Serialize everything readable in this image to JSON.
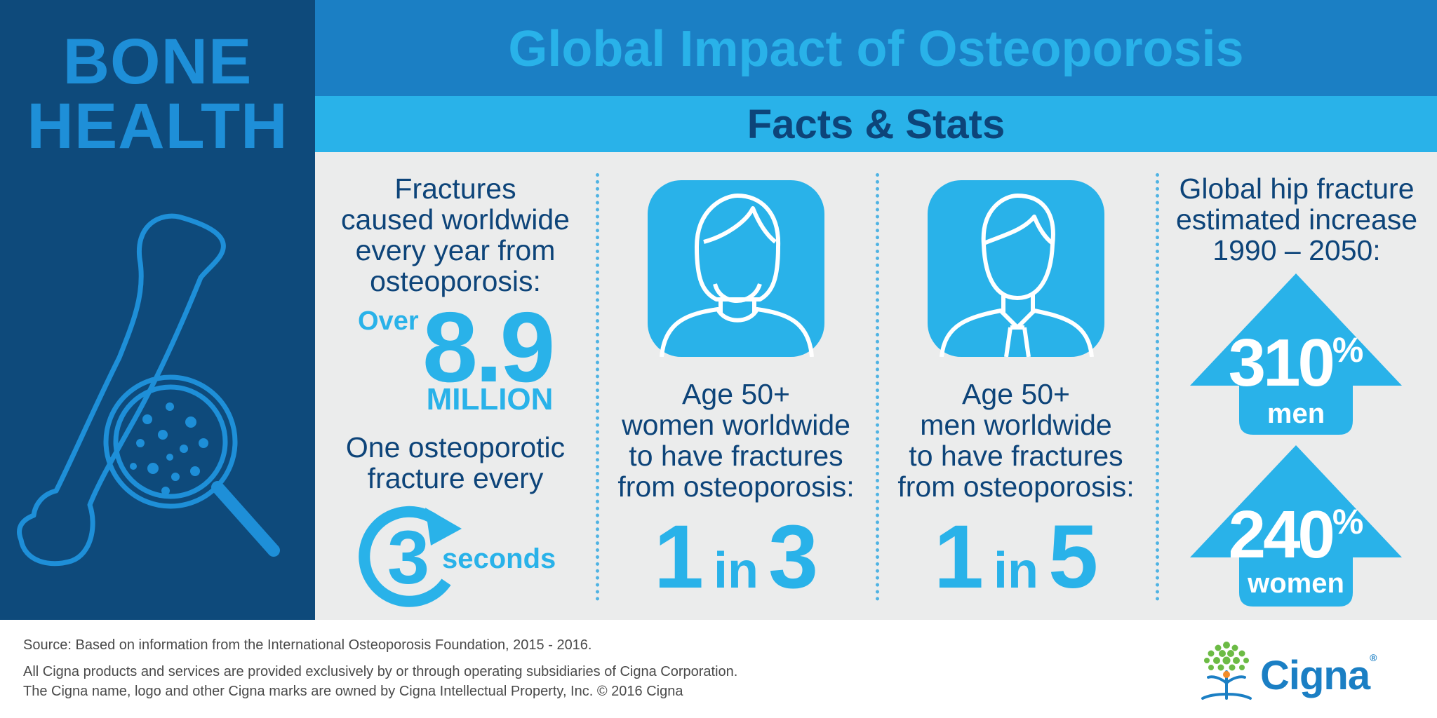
{
  "sidebar": {
    "title_line1": "BONE",
    "title_line2": "HEALTH",
    "icon": "bone-magnifier-icon"
  },
  "header": {
    "title": "Global Impact of Osteoporosis",
    "subtitle": "Facts & Stats"
  },
  "colors": {
    "navy": "#0e4a7b",
    "header_blue": "#1b7fc4",
    "light_blue": "#29b2e9",
    "panel_gray": "#ebecec",
    "dark_text": "#0d4479"
  },
  "stat_fractures": {
    "lines": [
      "Fractures",
      "caused worldwide",
      "every year from",
      "osteoporosis:"
    ],
    "prefix": "Over",
    "number": "8.9",
    "unit": "MILLION"
  },
  "stat_frequency": {
    "lines": [
      "One osteoporotic",
      "fracture every"
    ],
    "number": "3",
    "unit": "seconds",
    "icon": "circular-arrow-icon"
  },
  "stat_women": {
    "icon": "woman-avatar-icon",
    "lines": [
      "Age 50+",
      "women worldwide",
      "to have fractures",
      "from osteoporosis:"
    ],
    "ratio_a": "1",
    "ratio_in": "in",
    "ratio_b": "3"
  },
  "stat_men": {
    "icon": "man-avatar-icon",
    "lines": [
      "Age 50+",
      "men worldwide",
      "to have fractures",
      "from osteoporosis:"
    ],
    "ratio_a": "1",
    "ratio_in": "in",
    "ratio_b": "5"
  },
  "stat_hip": {
    "lines": [
      "Global hip fracture",
      "estimated increase",
      "1990 – 2050:"
    ],
    "men_value": "310",
    "men_pct": "%",
    "men_label": "men",
    "women_value": "240",
    "women_pct": "%",
    "women_label": "women"
  },
  "footer": {
    "source": "Source: Based on information from the International Osteoporosis Foundation, 2015 - 2016.",
    "legal1": "All Cigna products and services are provided exclusively by or through operating subsidiaries of Cigna Corporation.",
    "legal2": "The Cigna name, logo and other Cigna marks are owned by Cigna Intellectual Property, Inc. © 2016 Cigna",
    "logo_text": "Cigna",
    "logo_mark": "®",
    "logo_icon": "cigna-tree-icon"
  }
}
